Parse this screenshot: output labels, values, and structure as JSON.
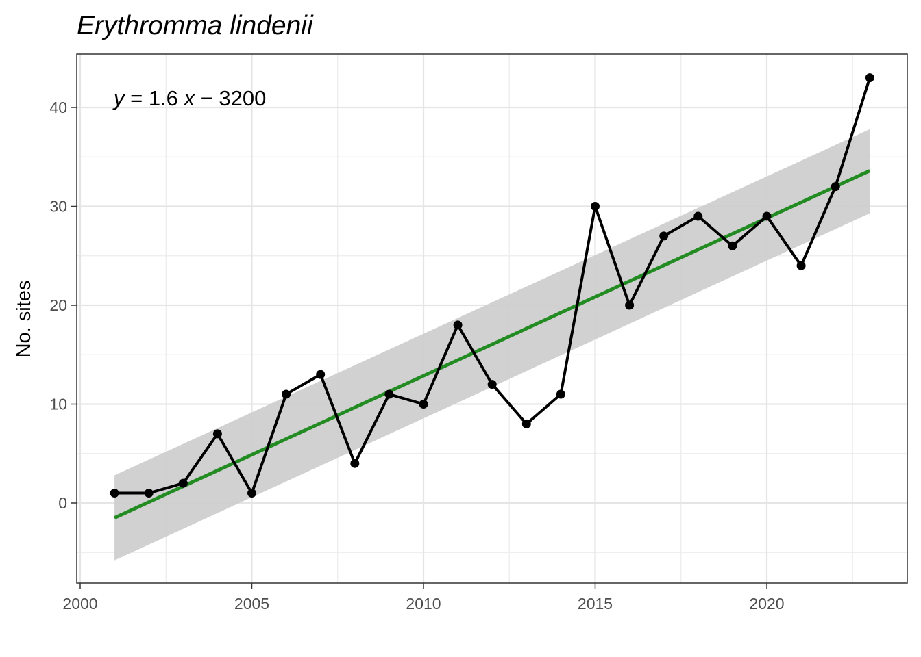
{
  "chart_data": {
    "type": "line",
    "title": "Erythromma lindenii",
    "xlabel": "",
    "ylabel": "No. sites",
    "xlim": [
      2000,
      2024
    ],
    "ylim": [
      -8,
      45
    ],
    "x_ticks": [
      2000,
      2005,
      2010,
      2015,
      2020
    ],
    "y_ticks": [
      0,
      10,
      20,
      30,
      40
    ],
    "grid": true,
    "series": [
      {
        "x": [
          2001,
          2002,
          2003,
          2004,
          2005,
          2006,
          2007,
          2008,
          2009,
          2010,
          2011,
          2012,
          2013,
          2014,
          2015,
          2016,
          2017,
          2018,
          2019,
          2020,
          2021,
          2022,
          2023
        ],
        "values": [
          1,
          1,
          2,
          7,
          1,
          11,
          13,
          4,
          11,
          10,
          18,
          12,
          8,
          11,
          30,
          20,
          27,
          29,
          26,
          29,
          24,
          32,
          43
        ],
        "color": "#000000"
      }
    ],
    "trend": {
      "color": "#228b22",
      "band_color": "#cccccc",
      "x": [
        2001,
        2023
      ],
      "y": [
        -1.5,
        33.6
      ],
      "upper": [
        2.8,
        37.8
      ],
      "lower": [
        -5.8,
        29.3
      ]
    },
    "annotation": {
      "y": "y",
      "eq": " = 1.6 ",
      "x": "x",
      "rest": " − 3200"
    }
  }
}
